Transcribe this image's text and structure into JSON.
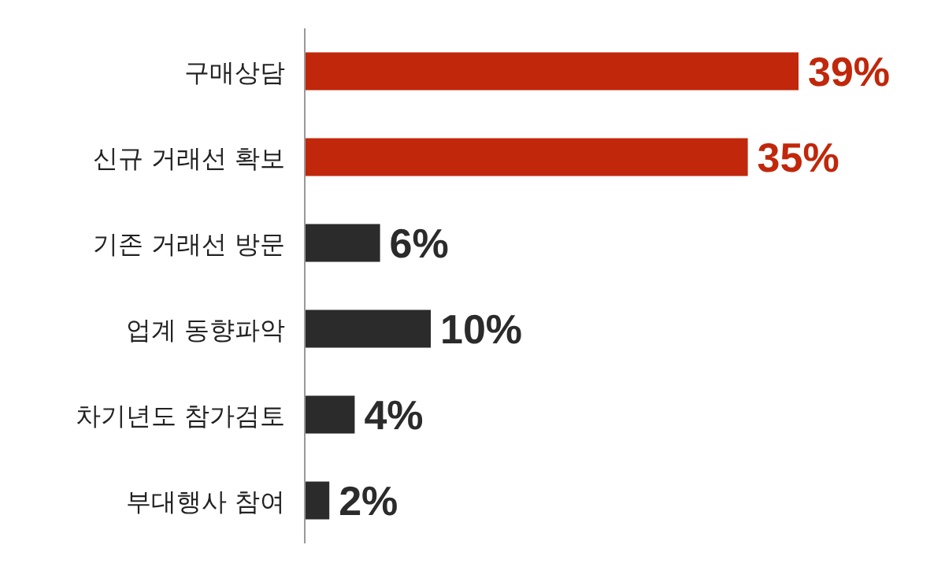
{
  "chart_data": {
    "type": "bar",
    "orientation": "horizontal",
    "relative": false,
    "categories": [
      "구매상담",
      "신규 거래선 확보",
      "기존 거래선 방문",
      "업계 동향파악",
      "차기년도 참가검토",
      "부대행사 참여"
    ],
    "values": [
      39,
      35,
      6,
      10,
      4,
      2
    ],
    "colors": [
      "#c1270a",
      "#c1270a",
      "#2b2b2b",
      "#2b2b2b",
      "#2b2b2b",
      "#2b2b2b"
    ],
    "value_labels": [
      "39%",
      "35%",
      "6%",
      "10%",
      "4%",
      "2%"
    ]
  }
}
